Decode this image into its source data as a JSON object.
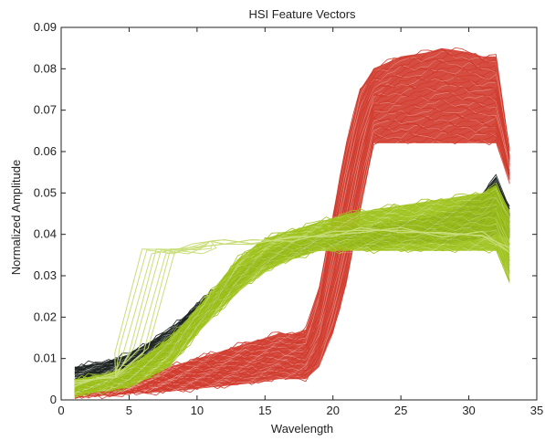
{
  "chart_data": {
    "type": "line",
    "title": "HSI Feature Vectors",
    "xlabel": "Wavelength",
    "ylabel": "Normalized Amplitude",
    "xlim": [
      0,
      35
    ],
    "ylim": [
      0,
      0.09
    ],
    "xticks": [
      0,
      5,
      10,
      15,
      20,
      25,
      30,
      35
    ],
    "yticks": [
      0,
      0.01,
      0.02,
      0.03,
      0.04,
      0.05,
      0.06,
      0.07,
      0.08,
      0.09
    ],
    "xtick_labels": [
      "0",
      "5",
      "10",
      "15",
      "20",
      "25",
      "30",
      "35"
    ],
    "ytick_labels": [
      "0",
      "0.01",
      "0.02",
      "0.03",
      "0.04",
      "0.05",
      "0.06",
      "0.07",
      "0.08",
      "0.09"
    ],
    "grid": false,
    "legend": "none",
    "series": [
      {
        "color": "#d03a2c",
        "x": [
          1,
          3,
          5,
          8,
          11,
          14,
          16,
          17,
          18,
          19,
          20,
          21,
          22,
          23,
          25,
          27,
          28,
          30,
          31,
          32,
          33
        ],
        "lower": [
          0.001,
          0.001,
          0.0015,
          0.002,
          0.003,
          0.004,
          0.005,
          0.005,
          0.005,
          0.008,
          0.016,
          0.028,
          0.045,
          0.062,
          0.062,
          0.062,
          0.062,
          0.062,
          0.062,
          0.062,
          0.052
        ],
        "upper": [
          0.002,
          0.003,
          0.005,
          0.008,
          0.011,
          0.014,
          0.016,
          0.016,
          0.017,
          0.027,
          0.045,
          0.062,
          0.075,
          0.08,
          0.083,
          0.084,
          0.085,
          0.084,
          0.083,
          0.083,
          0.06
        ]
      },
      {
        "color": "#1c2320",
        "x": [
          1,
          3,
          5,
          8,
          10,
          13,
          15,
          17,
          19,
          21,
          23,
          25,
          27,
          29,
          31,
          32,
          33
        ],
        "lower": [
          0.002,
          0.003,
          0.004,
          0.011,
          0.018,
          0.028,
          0.033,
          0.035,
          0.037,
          0.037,
          0.037,
          0.038,
          0.038,
          0.038,
          0.039,
          0.04,
          0.039
        ],
        "upper": [
          0.008,
          0.009,
          0.011,
          0.017,
          0.023,
          0.031,
          0.035,
          0.038,
          0.04,
          0.041,
          0.042,
          0.043,
          0.044,
          0.046,
          0.05,
          0.054,
          0.046
        ]
      },
      {
        "color": "#9ec21c",
        "x": [
          1,
          3,
          5,
          8,
          10,
          13,
          15,
          17,
          19,
          21,
          23,
          25,
          27,
          29,
          31,
          32,
          33
        ],
        "lower": [
          0.001,
          0.002,
          0.003,
          0.008,
          0.016,
          0.026,
          0.031,
          0.034,
          0.036,
          0.036,
          0.036,
          0.036,
          0.036,
          0.036,
          0.036,
          0.036,
          0.028
        ],
        "upper": [
          0.005,
          0.006,
          0.008,
          0.015,
          0.022,
          0.034,
          0.039,
          0.041,
          0.043,
          0.045,
          0.046,
          0.047,
          0.048,
          0.049,
          0.05,
          0.052,
          0.045
        ]
      },
      {
        "color": "#c8dd78",
        "x": [
          1,
          4,
          5,
          7,
          9,
          10,
          11,
          12,
          14,
          17,
          20,
          22,
          25,
          28,
          31,
          33
        ],
        "values": [
          0.004,
          0.006,
          0.012,
          0.036,
          0.036,
          0.037,
          0.038,
          0.038,
          0.038,
          0.039,
          0.04,
          0.041,
          0.041,
          0.04,
          0.04,
          0.036
        ]
      }
    ]
  }
}
